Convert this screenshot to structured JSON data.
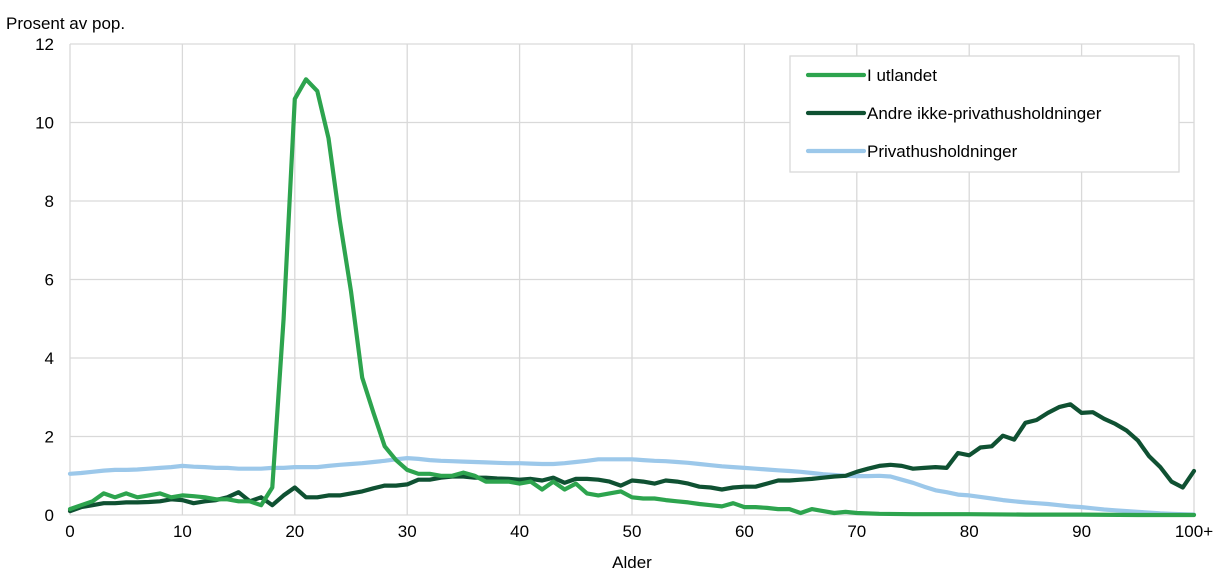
{
  "chart_data": {
    "type": "line",
    "title": "",
    "ylabel": "Prosent av pop.",
    "xlabel": "Alder",
    "xlim": [
      0,
      100
    ],
    "ylim": [
      0,
      12
    ],
    "x_ticks": [
      0,
      10,
      20,
      30,
      40,
      50,
      60,
      70,
      80,
      90,
      100
    ],
    "x_tick_labels": [
      "0",
      "10",
      "20",
      "30",
      "40",
      "50",
      "60",
      "70",
      "80",
      "90",
      "100+"
    ],
    "y_ticks": [
      0,
      2,
      4,
      6,
      8,
      10,
      12
    ],
    "y_tick_labels": [
      "0",
      "2",
      "4",
      "6",
      "8",
      "10",
      "12"
    ],
    "grid": true,
    "legend_position": "top-right",
    "series": [
      {
        "name": "I utlandet",
        "color": "#2da44e",
        "points": [
          [
            0,
            0.15
          ],
          [
            1,
            0.25
          ],
          [
            2,
            0.35
          ],
          [
            3,
            0.55
          ],
          [
            4,
            0.45
          ],
          [
            5,
            0.55
          ],
          [
            6,
            0.45
          ],
          [
            7,
            0.5
          ],
          [
            8,
            0.55
          ],
          [
            9,
            0.45
          ],
          [
            10,
            0.5
          ],
          [
            11,
            0.48
          ],
          [
            12,
            0.45
          ],
          [
            13,
            0.4
          ],
          [
            14,
            0.4
          ],
          [
            15,
            0.35
          ],
          [
            16,
            0.35
          ],
          [
            17,
            0.25
          ],
          [
            18,
            0.7
          ],
          [
            19,
            5.0
          ],
          [
            20,
            10.6
          ],
          [
            21,
            11.1
          ],
          [
            22,
            10.8
          ],
          [
            23,
            9.6
          ],
          [
            24,
            7.5
          ],
          [
            25,
            5.7
          ],
          [
            26,
            3.5
          ],
          [
            27,
            2.6
          ],
          [
            28,
            1.75
          ],
          [
            29,
            1.4
          ],
          [
            30,
            1.15
          ],
          [
            31,
            1.05
          ],
          [
            32,
            1.05
          ],
          [
            33,
            1.0
          ],
          [
            34,
            1.0
          ],
          [
            35,
            1.08
          ],
          [
            36,
            1.0
          ],
          [
            37,
            0.85
          ],
          [
            38,
            0.85
          ],
          [
            39,
            0.85
          ],
          [
            40,
            0.8
          ],
          [
            41,
            0.85
          ],
          [
            42,
            0.65
          ],
          [
            43,
            0.85
          ],
          [
            44,
            0.65
          ],
          [
            45,
            0.8
          ],
          [
            46,
            0.55
          ],
          [
            47,
            0.5
          ],
          [
            48,
            0.55
          ],
          [
            49,
            0.6
          ],
          [
            50,
            0.45
          ],
          [
            51,
            0.42
          ],
          [
            52,
            0.42
          ],
          [
            53,
            0.38
          ],
          [
            54,
            0.35
          ],
          [
            55,
            0.32
          ],
          [
            56,
            0.28
          ],
          [
            57,
            0.25
          ],
          [
            58,
            0.22
          ],
          [
            59,
            0.3
          ],
          [
            60,
            0.2
          ],
          [
            61,
            0.2
          ],
          [
            62,
            0.18
          ],
          [
            63,
            0.15
          ],
          [
            64,
            0.15
          ],
          [
            65,
            0.05
          ],
          [
            66,
            0.15
          ],
          [
            67,
            0.1
          ],
          [
            68,
            0.05
          ],
          [
            69,
            0.08
          ],
          [
            70,
            0.05
          ],
          [
            72,
            0.03
          ],
          [
            75,
            0.02
          ],
          [
            80,
            0.02
          ],
          [
            85,
            0.01
          ],
          [
            90,
            0.01
          ],
          [
            95,
            0.0
          ],
          [
            100,
            0.0
          ]
        ]
      },
      {
        "name": "Andre ikke-privathusholdninger",
        "color": "#0f5132",
        "points": [
          [
            0,
            0.1
          ],
          [
            1,
            0.2
          ],
          [
            2,
            0.25
          ],
          [
            3,
            0.3
          ],
          [
            4,
            0.3
          ],
          [
            5,
            0.32
          ],
          [
            6,
            0.32
          ],
          [
            7,
            0.33
          ],
          [
            8,
            0.35
          ],
          [
            9,
            0.4
          ],
          [
            10,
            0.38
          ],
          [
            11,
            0.3
          ],
          [
            12,
            0.35
          ],
          [
            13,
            0.38
          ],
          [
            14,
            0.45
          ],
          [
            15,
            0.58
          ],
          [
            16,
            0.35
          ],
          [
            17,
            0.45
          ],
          [
            18,
            0.25
          ],
          [
            19,
            0.5
          ],
          [
            20,
            0.7
          ],
          [
            21,
            0.45
          ],
          [
            22,
            0.45
          ],
          [
            23,
            0.5
          ],
          [
            24,
            0.5
          ],
          [
            25,
            0.55
          ],
          [
            26,
            0.6
          ],
          [
            27,
            0.68
          ],
          [
            28,
            0.75
          ],
          [
            29,
            0.75
          ],
          [
            30,
            0.78
          ],
          [
            31,
            0.9
          ],
          [
            32,
            0.9
          ],
          [
            33,
            0.95
          ],
          [
            34,
            0.98
          ],
          [
            35,
            0.98
          ],
          [
            36,
            0.95
          ],
          [
            37,
            0.95
          ],
          [
            38,
            0.93
          ],
          [
            39,
            0.92
          ],
          [
            40,
            0.9
          ],
          [
            41,
            0.92
          ],
          [
            42,
            0.88
          ],
          [
            43,
            0.95
          ],
          [
            44,
            0.82
          ],
          [
            45,
            0.92
          ],
          [
            46,
            0.92
          ],
          [
            47,
            0.9
          ],
          [
            48,
            0.85
          ],
          [
            49,
            0.75
          ],
          [
            50,
            0.88
          ],
          [
            51,
            0.85
          ],
          [
            52,
            0.8
          ],
          [
            53,
            0.88
          ],
          [
            54,
            0.85
          ],
          [
            55,
            0.8
          ],
          [
            56,
            0.72
          ],
          [
            57,
            0.7
          ],
          [
            58,
            0.65
          ],
          [
            59,
            0.7
          ],
          [
            60,
            0.72
          ],
          [
            61,
            0.72
          ],
          [
            62,
            0.8
          ],
          [
            63,
            0.88
          ],
          [
            64,
            0.88
          ],
          [
            65,
            0.9
          ],
          [
            66,
            0.92
          ],
          [
            67,
            0.95
          ],
          [
            68,
            0.98
          ],
          [
            69,
            1.0
          ],
          [
            70,
            1.1
          ],
          [
            71,
            1.18
          ],
          [
            72,
            1.25
          ],
          [
            73,
            1.28
          ],
          [
            74,
            1.25
          ],
          [
            75,
            1.18
          ],
          [
            76,
            1.2
          ],
          [
            77,
            1.22
          ],
          [
            78,
            1.2
          ],
          [
            79,
            1.58
          ],
          [
            80,
            1.52
          ],
          [
            81,
            1.72
          ],
          [
            82,
            1.75
          ],
          [
            83,
            2.02
          ],
          [
            84,
            1.92
          ],
          [
            85,
            2.35
          ],
          [
            86,
            2.42
          ],
          [
            87,
            2.6
          ],
          [
            88,
            2.75
          ],
          [
            89,
            2.82
          ],
          [
            90,
            2.6
          ],
          [
            91,
            2.62
          ],
          [
            92,
            2.45
          ],
          [
            93,
            2.32
          ],
          [
            94,
            2.15
          ],
          [
            95,
            1.9
          ],
          [
            96,
            1.5
          ],
          [
            97,
            1.22
          ],
          [
            98,
            0.85
          ],
          [
            99,
            0.7
          ],
          [
            100,
            1.12
          ]
        ]
      },
      {
        "name": "Privathusholdninger",
        "color": "#9cc8ea",
        "points": [
          [
            0,
            1.05
          ],
          [
            1,
            1.07
          ],
          [
            2,
            1.1
          ],
          [
            3,
            1.13
          ],
          [
            4,
            1.15
          ],
          [
            5,
            1.15
          ],
          [
            6,
            1.16
          ],
          [
            7,
            1.18
          ],
          [
            8,
            1.2
          ],
          [
            9,
            1.22
          ],
          [
            10,
            1.25
          ],
          [
            11,
            1.23
          ],
          [
            12,
            1.22
          ],
          [
            13,
            1.2
          ],
          [
            14,
            1.2
          ],
          [
            15,
            1.18
          ],
          [
            16,
            1.18
          ],
          [
            17,
            1.18
          ],
          [
            18,
            1.2
          ],
          [
            19,
            1.2
          ],
          [
            20,
            1.22
          ],
          [
            21,
            1.22
          ],
          [
            22,
            1.22
          ],
          [
            23,
            1.25
          ],
          [
            24,
            1.28
          ],
          [
            25,
            1.3
          ],
          [
            26,
            1.32
          ],
          [
            27,
            1.35
          ],
          [
            28,
            1.38
          ],
          [
            29,
            1.42
          ],
          [
            30,
            1.45
          ],
          [
            31,
            1.43
          ],
          [
            32,
            1.4
          ],
          [
            33,
            1.38
          ],
          [
            34,
            1.37
          ],
          [
            35,
            1.36
          ],
          [
            36,
            1.35
          ],
          [
            37,
            1.34
          ],
          [
            38,
            1.33
          ],
          [
            39,
            1.32
          ],
          [
            40,
            1.32
          ],
          [
            41,
            1.31
          ],
          [
            42,
            1.3
          ],
          [
            43,
            1.3
          ],
          [
            44,
            1.32
          ],
          [
            45,
            1.35
          ],
          [
            46,
            1.38
          ],
          [
            47,
            1.42
          ],
          [
            48,
            1.42
          ],
          [
            49,
            1.42
          ],
          [
            50,
            1.42
          ],
          [
            51,
            1.4
          ],
          [
            52,
            1.38
          ],
          [
            53,
            1.37
          ],
          [
            54,
            1.35
          ],
          [
            55,
            1.33
          ],
          [
            56,
            1.3
          ],
          [
            57,
            1.27
          ],
          [
            58,
            1.24
          ],
          [
            59,
            1.22
          ],
          [
            60,
            1.2
          ],
          [
            61,
            1.18
          ],
          [
            62,
            1.16
          ],
          [
            63,
            1.14
          ],
          [
            64,
            1.12
          ],
          [
            65,
            1.1
          ],
          [
            66,
            1.07
          ],
          [
            67,
            1.04
          ],
          [
            68,
            1.02
          ],
          [
            69,
            1.0
          ],
          [
            70,
            0.99
          ],
          [
            71,
            0.99
          ],
          [
            72,
            1.0
          ],
          [
            73,
            0.98
          ],
          [
            74,
            0.9
          ],
          [
            75,
            0.82
          ],
          [
            76,
            0.72
          ],
          [
            77,
            0.63
          ],
          [
            78,
            0.58
          ],
          [
            79,
            0.52
          ],
          [
            80,
            0.5
          ],
          [
            81,
            0.46
          ],
          [
            82,
            0.42
          ],
          [
            83,
            0.38
          ],
          [
            84,
            0.35
          ],
          [
            85,
            0.32
          ],
          [
            86,
            0.3
          ],
          [
            87,
            0.28
          ],
          [
            88,
            0.25
          ],
          [
            89,
            0.22
          ],
          [
            90,
            0.2
          ],
          [
            91,
            0.17
          ],
          [
            92,
            0.14
          ],
          [
            93,
            0.12
          ],
          [
            94,
            0.1
          ],
          [
            95,
            0.08
          ],
          [
            96,
            0.06
          ],
          [
            97,
            0.04
          ],
          [
            98,
            0.03
          ],
          [
            99,
            0.02
          ],
          [
            100,
            0.01
          ]
        ]
      }
    ]
  }
}
